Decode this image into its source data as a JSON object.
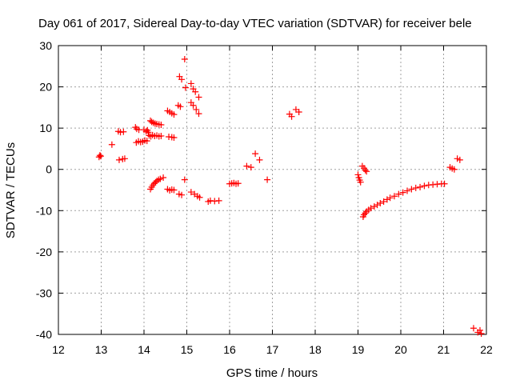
{
  "chart_data": {
    "type": "scatter",
    "title": "Day 061 of 2017, Sidereal Day-to-day VTEC variation (SDTVAR) for receiver bele",
    "xlabel": "GPS time / hours",
    "ylabel": "SDTVAR / TECUs",
    "xlim": [
      12,
      22
    ],
    "ylim": [
      -40,
      30
    ],
    "x_ticks": [
      12,
      13,
      14,
      15,
      16,
      17,
      18,
      19,
      20,
      21,
      22
    ],
    "y_ticks": [
      -40,
      -30,
      -20,
      -10,
      0,
      10,
      20,
      30
    ],
    "grid": true,
    "marker": "+",
    "series_color": "#ff0000",
    "series": [
      {
        "name": "SDTVAR",
        "points": [
          [
            12.95,
            3.0
          ],
          [
            12.97,
            3.4
          ],
          [
            12.99,
            3.2
          ],
          [
            13.25,
            6.0
          ],
          [
            13.4,
            9.2
          ],
          [
            13.45,
            9.0
          ],
          [
            13.52,
            9.1
          ],
          [
            13.42,
            2.3
          ],
          [
            13.5,
            2.5
          ],
          [
            13.55,
            2.6
          ],
          [
            13.8,
            10.2
          ],
          [
            13.83,
            9.8
          ],
          [
            13.88,
            9.6
          ],
          [
            13.82,
            6.5
          ],
          [
            13.87,
            6.8
          ],
          [
            13.92,
            6.6
          ],
          [
            13.97,
            6.7
          ],
          [
            14.0,
            9.6
          ],
          [
            14.05,
            9.2
          ],
          [
            14.08,
            9.5
          ],
          [
            14.1,
            9.0
          ],
          [
            14.02,
            7.0
          ],
          [
            14.07,
            6.9
          ],
          [
            14.15,
            11.8
          ],
          [
            14.18,
            11.5
          ],
          [
            14.22,
            11.3
          ],
          [
            14.26,
            11.1
          ],
          [
            14.3,
            11.0
          ],
          [
            14.35,
            10.9
          ],
          [
            14.4,
            10.8
          ],
          [
            14.12,
            8.2
          ],
          [
            14.16,
            8.0
          ],
          [
            14.2,
            8.3
          ],
          [
            14.25,
            8.1
          ],
          [
            14.3,
            8.2
          ],
          [
            14.35,
            8.0
          ],
          [
            14.4,
            8.1
          ],
          [
            14.15,
            -4.8
          ],
          [
            14.18,
            -4.3
          ],
          [
            14.21,
            -3.8
          ],
          [
            14.24,
            -3.4
          ],
          [
            14.27,
            -3.1
          ],
          [
            14.3,
            -2.8
          ],
          [
            14.34,
            -2.5
          ],
          [
            14.38,
            -2.3
          ],
          [
            14.45,
            -2.0
          ],
          [
            14.55,
            14.2
          ],
          [
            14.6,
            13.9
          ],
          [
            14.65,
            13.6
          ],
          [
            14.7,
            13.3
          ],
          [
            14.58,
            7.9
          ],
          [
            14.65,
            7.8
          ],
          [
            14.7,
            7.7
          ],
          [
            14.55,
            -4.8
          ],
          [
            14.6,
            -5.1
          ],
          [
            14.65,
            -4.9
          ],
          [
            14.7,
            -5.0
          ],
          [
            14.8,
            15.5
          ],
          [
            14.85,
            15.2
          ],
          [
            14.83,
            22.5
          ],
          [
            14.88,
            21.8
          ],
          [
            14.82,
            -6.0
          ],
          [
            14.88,
            -6.2
          ],
          [
            14.95,
            26.7
          ],
          [
            14.97,
            19.8
          ],
          [
            14.95,
            -2.5
          ],
          [
            15.1,
            20.8
          ],
          [
            15.15,
            19.5
          ],
          [
            15.2,
            18.8
          ],
          [
            15.28,
            17.5
          ],
          [
            15.1,
            16.2
          ],
          [
            15.15,
            15.5
          ],
          [
            15.22,
            14.5
          ],
          [
            15.28,
            13.5
          ],
          [
            15.1,
            -5.5
          ],
          [
            15.18,
            -6.0
          ],
          [
            15.25,
            -6.5
          ],
          [
            15.3,
            -6.8
          ],
          [
            15.5,
            -7.8
          ],
          [
            15.55,
            -7.6
          ],
          [
            15.65,
            -7.7
          ],
          [
            15.75,
            -7.6
          ],
          [
            16.0,
            -3.5
          ],
          [
            16.05,
            -3.4
          ],
          [
            16.1,
            -3.3
          ],
          [
            16.15,
            -3.5
          ],
          [
            16.2,
            -3.4
          ],
          [
            16.4,
            0.8
          ],
          [
            16.5,
            0.5
          ],
          [
            16.6,
            3.8
          ],
          [
            16.7,
            2.3
          ],
          [
            16.88,
            -2.5
          ],
          [
            17.4,
            13.4
          ],
          [
            17.45,
            12.8
          ],
          [
            17.55,
            14.5
          ],
          [
            17.62,
            13.9
          ],
          [
            19.0,
            -1.3
          ],
          [
            19.02,
            -2.0
          ],
          [
            19.04,
            -2.6
          ],
          [
            19.06,
            -3.1
          ],
          [
            19.1,
            0.8
          ],
          [
            19.14,
            0.3
          ],
          [
            19.17,
            -0.2
          ],
          [
            19.2,
            -0.5
          ],
          [
            19.12,
            -11.5
          ],
          [
            19.14,
            -11.0
          ],
          [
            19.17,
            -10.6
          ],
          [
            19.2,
            -10.2
          ],
          [
            19.25,
            -9.8
          ],
          [
            19.3,
            -9.4
          ],
          [
            19.38,
            -9.0
          ],
          [
            19.45,
            -8.6
          ],
          [
            19.52,
            -8.2
          ],
          [
            19.6,
            -7.8
          ],
          [
            19.68,
            -7.3
          ],
          [
            19.75,
            -6.9
          ],
          [
            19.85,
            -6.5
          ],
          [
            19.95,
            -6.0
          ],
          [
            20.05,
            -5.6
          ],
          [
            20.15,
            -5.2
          ],
          [
            20.25,
            -4.8
          ],
          [
            20.35,
            -4.5
          ],
          [
            20.45,
            -4.3
          ],
          [
            20.55,
            -4.0
          ],
          [
            20.65,
            -3.8
          ],
          [
            20.75,
            -3.7
          ],
          [
            20.85,
            -3.6
          ],
          [
            20.95,
            -3.5
          ],
          [
            21.02,
            -3.5
          ],
          [
            21.15,
            0.5
          ],
          [
            21.2,
            0.2
          ],
          [
            21.25,
            0.0
          ],
          [
            21.32,
            2.6
          ],
          [
            21.38,
            2.3
          ],
          [
            21.7,
            -38.5
          ],
          [
            21.8,
            -39.5
          ],
          [
            21.85,
            -39.0
          ],
          [
            21.88,
            -39.8
          ]
        ]
      }
    ]
  }
}
